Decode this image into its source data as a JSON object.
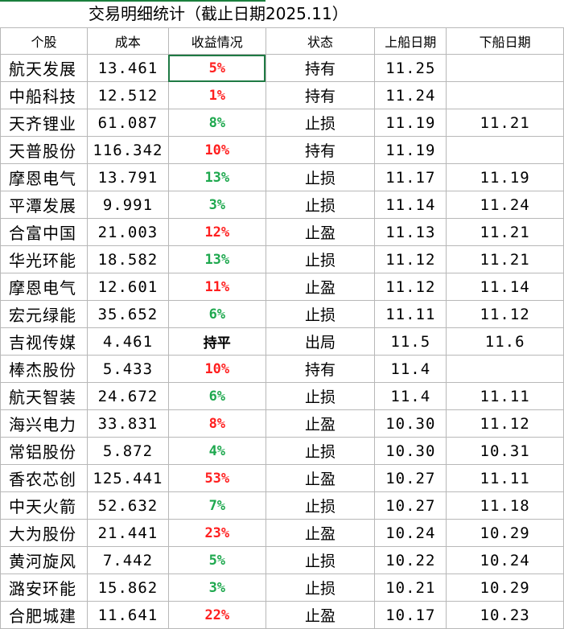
{
  "title": "交易明细统计（截止日期2025.11）",
  "columns": [
    "个股",
    "成本",
    "收益情况",
    "状态",
    "上船日期",
    "下船日期"
  ],
  "colors": {
    "gain": "#ff1f1f",
    "loss_or_stop": "#1ea84e",
    "neutral": "#000000",
    "selection": "#1f7a44"
  },
  "selected_cell": {
    "row": 0,
    "column": "收益情况"
  },
  "rows": [
    {
      "stock": "航天发展",
      "cost": "13.461",
      "pnl": "5%",
      "pnl_color": "red",
      "status": "持有",
      "buy": "11.25",
      "sell": ""
    },
    {
      "stock": "中船科技",
      "cost": "12.512",
      "pnl": "1%",
      "pnl_color": "red",
      "status": "持有",
      "buy": "11.24",
      "sell": ""
    },
    {
      "stock": "天齐锂业",
      "cost": "61.087",
      "pnl": "8%",
      "pnl_color": "green",
      "status": "止损",
      "buy": "11.19",
      "sell": "11.21"
    },
    {
      "stock": "天普股份",
      "cost": "116.342",
      "pnl": "10%",
      "pnl_color": "red",
      "status": "持有",
      "buy": "11.19",
      "sell": ""
    },
    {
      "stock": "摩恩电气",
      "cost": "13.791",
      "pnl": "13%",
      "pnl_color": "green",
      "status": "止损",
      "buy": "11.17",
      "sell": "11.19"
    },
    {
      "stock": "平潭发展",
      "cost": "9.991",
      "pnl": "3%",
      "pnl_color": "green",
      "status": "止损",
      "buy": "11.14",
      "sell": "11.24"
    },
    {
      "stock": "合富中国",
      "cost": "21.003",
      "pnl": "12%",
      "pnl_color": "red",
      "status": "止盈",
      "buy": "11.13",
      "sell": "11.21"
    },
    {
      "stock": "华光环能",
      "cost": "18.582",
      "pnl": "13%",
      "pnl_color": "green",
      "status": "止损",
      "buy": "11.12",
      "sell": "11.21"
    },
    {
      "stock": "摩恩电气",
      "cost": "12.601",
      "pnl": "11%",
      "pnl_color": "red",
      "status": "止盈",
      "buy": "11.12",
      "sell": "11.14"
    },
    {
      "stock": "宏元绿能",
      "cost": "35.652",
      "pnl": "6%",
      "pnl_color": "green",
      "status": "止损",
      "buy": "11.11",
      "sell": "11.12"
    },
    {
      "stock": "吉视传媒",
      "cost": "4.461",
      "pnl": "持平",
      "pnl_color": "black",
      "status": "出局",
      "buy": "11.5",
      "sell": "11.6"
    },
    {
      "stock": "棒杰股份",
      "cost": "5.433",
      "pnl": "10%",
      "pnl_color": "red",
      "status": "持有",
      "buy": "11.4",
      "sell": ""
    },
    {
      "stock": "航天智装",
      "cost": "24.672",
      "pnl": "6%",
      "pnl_color": "green",
      "status": "止损",
      "buy": "11.4",
      "sell": "11.11"
    },
    {
      "stock": "海兴电力",
      "cost": "33.831",
      "pnl": "8%",
      "pnl_color": "red",
      "status": "止盈",
      "buy": "10.30",
      "sell": "11.12"
    },
    {
      "stock": "常铝股份",
      "cost": "5.872",
      "pnl": "4%",
      "pnl_color": "green",
      "status": "止损",
      "buy": "10.30",
      "sell": "10.31"
    },
    {
      "stock": "香农芯创",
      "cost": "125.441",
      "pnl": "53%",
      "pnl_color": "red",
      "status": "止盈",
      "buy": "10.27",
      "sell": "11.11"
    },
    {
      "stock": "中天火箭",
      "cost": "52.632",
      "pnl": "7%",
      "pnl_color": "green",
      "status": "止损",
      "buy": "10.27",
      "sell": "11.18"
    },
    {
      "stock": "大为股份",
      "cost": "21.441",
      "pnl": "23%",
      "pnl_color": "red",
      "status": "止盈",
      "buy": "10.24",
      "sell": "10.29"
    },
    {
      "stock": "黄河旋风",
      "cost": "7.442",
      "pnl": "5%",
      "pnl_color": "green",
      "status": "止损",
      "buy": "10.22",
      "sell": "10.24"
    },
    {
      "stock": "潞安环能",
      "cost": "15.862",
      "pnl": "3%",
      "pnl_color": "green",
      "status": "止损",
      "buy": "10.21",
      "sell": "10.29"
    },
    {
      "stock": "合肥城建",
      "cost": "11.641",
      "pnl": "22%",
      "pnl_color": "red",
      "status": "止盈",
      "buy": "10.17",
      "sell": "10.23"
    }
  ]
}
